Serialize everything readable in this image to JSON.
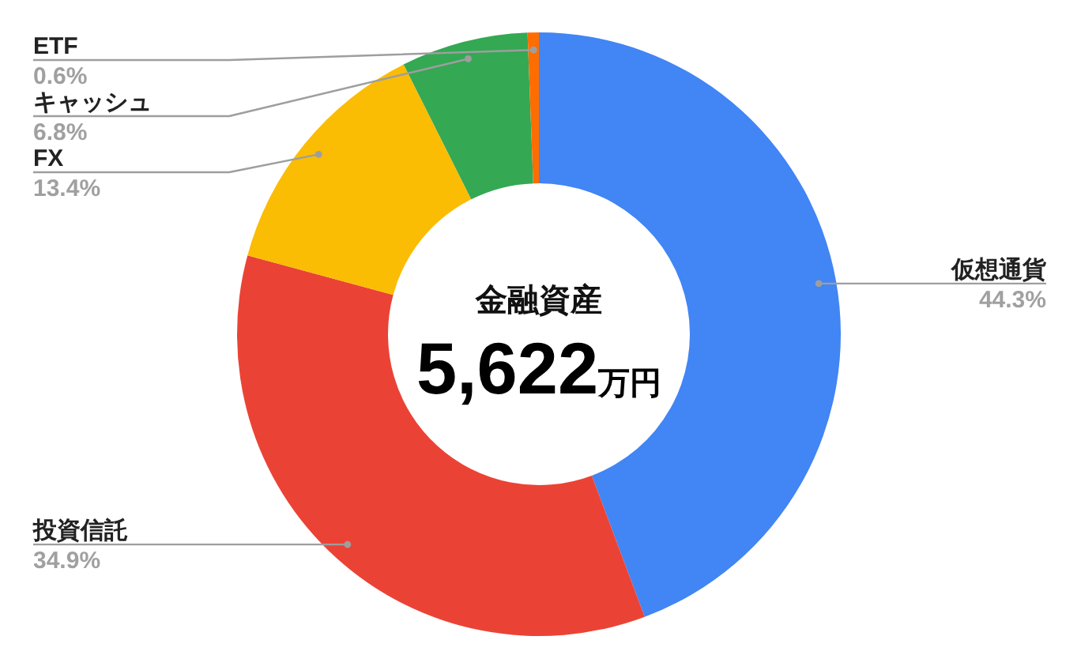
{
  "chart_data": {
    "type": "donut",
    "categories": [
      "仮想通貨",
      "投資信託",
      "FX",
      "キャッシュ",
      "ETF"
    ],
    "values": [
      44.3,
      34.9,
      13.4,
      6.8,
      0.6
    ],
    "colors": [
      "#4285f4",
      "#ea4335",
      "#fbbc04",
      "#34a853",
      "#ff6d01"
    ],
    "value_labels": [
      "44.3%",
      "34.9%",
      "13.4%",
      "6.8%",
      "0.6%"
    ],
    "annotations": [
      "金融資産",
      "5,622万円"
    ]
  }
}
